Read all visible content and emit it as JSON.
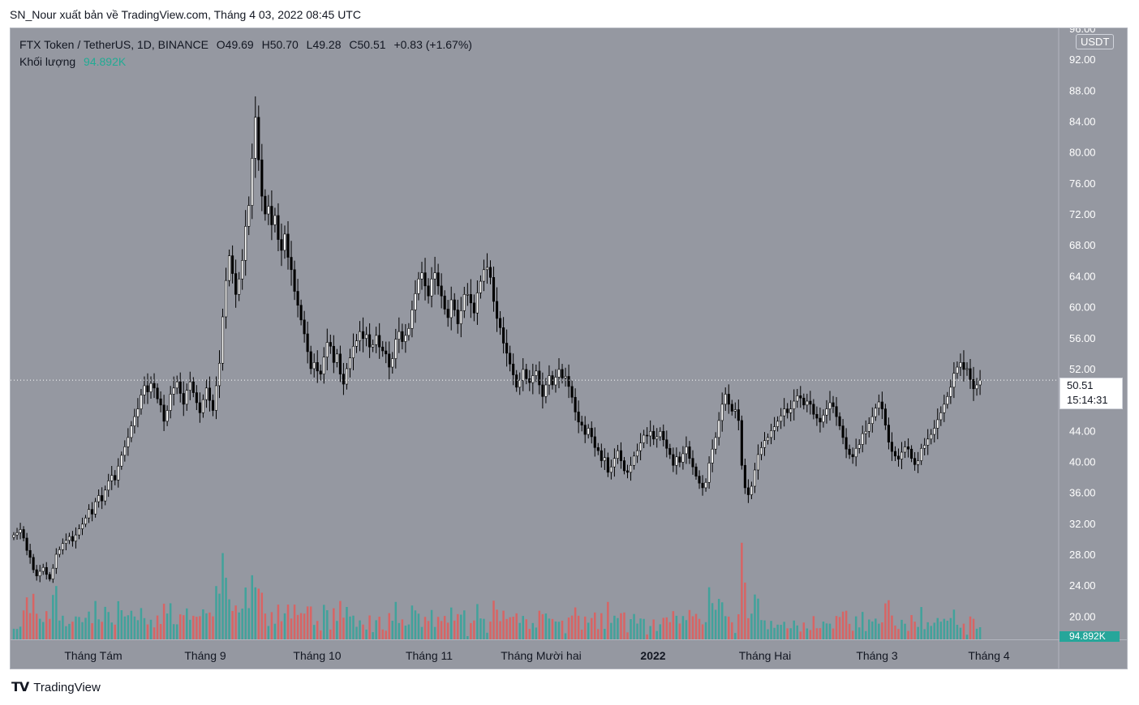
{
  "header": {
    "publish_line": "SN_Nour xuất bản về TradingView.com, Tháng 4 03, 2022 08:45 UTC"
  },
  "legend": {
    "symbol": "FTX Token / TetherUS, 1D, BINANCE",
    "open": "O49.69",
    "high": "H50.70",
    "low": "L49.28",
    "close": "C50.51",
    "change": "+0.83 (+1.67%)",
    "volume_label": "Khối lượng",
    "volume_value": "94.892K"
  },
  "price_scale": {
    "unit": "USDT",
    "ticks": [
      "92.00",
      "88.00",
      "84.00",
      "80.00",
      "76.00",
      "72.00",
      "68.00",
      "64.00",
      "60.00",
      "56.00",
      "52.00",
      "48.00",
      "44.00",
      "40.00",
      "36.00",
      "32.00",
      "28.00",
      "24.00",
      "20.00"
    ],
    "top_partial": "96.00",
    "last_price": "50.51",
    "countdown": "15:14:31",
    "volume_tag": "94.892K"
  },
  "time_scale": {
    "labels": [
      "Tháng Tám",
      "Tháng 9",
      "Tháng 10",
      "Tháng 11",
      "Tháng Mười hai",
      "2022",
      "Tháng Hai",
      "Tháng 3",
      "Tháng 4"
    ]
  },
  "footer": {
    "brand": "TradingView",
    "logo_text": "𝗧𝗩"
  },
  "colors": {
    "background": "#9598a1",
    "up": "#ffffff",
    "down": "#000000",
    "vol_up": "#26a69a",
    "vol_down": "#ef5350",
    "vol_tag": "#26a69a"
  },
  "chart_data": {
    "type": "candlestick",
    "symbol": "FTX Token / TetherUS",
    "interval": "1D",
    "exchange": "BINANCE",
    "y_axis_range": [
      17,
      96
    ],
    "last_price": 50.51,
    "x_labels": [
      "Tháng Tám",
      "Tháng 9",
      "Tháng 10",
      "Tháng 11",
      "Tháng Mười hai",
      "2022",
      "Tháng Hai",
      "Tháng 3",
      "Tháng 4"
    ],
    "close_series": [
      30.5,
      30.8,
      31.2,
      30.1,
      28.5,
      27.6,
      26.0,
      25.2,
      25.8,
      26.3,
      25.4,
      24.8,
      26.2,
      28.0,
      28.6,
      29.4,
      29.8,
      30.3,
      29.7,
      30.5,
      31.3,
      31.9,
      32.7,
      33.8,
      33.2,
      34.8,
      35.6,
      34.9,
      36.3,
      37.5,
      38.2,
      37.6,
      39.4,
      40.8,
      41.9,
      43.1,
      44.6,
      45.8,
      46.8,
      48.6,
      49.8,
      49.0,
      50.1,
      49.5,
      48.1,
      47.3,
      45.2,
      46.6,
      48.7,
      49.5,
      50.3,
      48.8,
      47.4,
      49.2,
      50.3,
      48.9,
      47.6,
      46.3,
      48.0,
      49.5,
      47.9,
      46.6,
      49.8,
      52.7,
      58.7,
      63.4,
      66.6,
      64.3,
      61.6,
      63.6,
      66.0,
      70.4,
      73.1,
      79.2,
      84.5,
      79.0,
      74.3,
      72.0,
      73.0,
      70.6,
      71.8,
      68.7,
      67.3,
      69.4,
      66.4,
      64.8,
      62.0,
      60.2,
      58.3,
      56.5,
      54.2,
      52.0,
      52.8,
      51.7,
      51.3,
      53.5,
      55.4,
      54.9,
      52.8,
      53.9,
      51.3,
      50.0,
      52.0,
      53.4,
      54.9,
      55.6,
      56.8,
      55.9,
      56.4,
      54.8,
      55.1,
      56.3,
      54.8,
      54.3,
      53.9,
      52.2,
      53.3,
      55.8,
      56.8,
      55.5,
      56.3,
      57.2,
      59.6,
      61.7,
      63.6,
      64.4,
      62.7,
      61.4,
      63.6,
      64.4,
      62.7,
      61.4,
      59.7,
      58.6,
      60.9,
      59.6,
      57.8,
      59.5,
      61.6,
      61.6,
      60.5,
      59.2,
      61.8,
      63.3,
      64.8,
      65.1,
      63.8,
      60.7,
      58.5,
      57.3,
      55.3,
      54.0,
      52.6,
      51.2,
      49.6,
      50.5,
      51.9,
      50.7,
      50.2,
      51.1,
      51.7,
      49.9,
      48.4,
      49.9,
      51.1,
      49.9,
      50.9,
      51.9,
      50.8,
      51.0,
      49.7,
      48.3,
      46.4,
      45.1,
      44.7,
      43.5,
      44.3,
      43.2,
      41.8,
      41.4,
      40.1,
      40.5,
      38.6,
      39.3,
      40.4,
      41.4,
      40.1,
      38.8,
      38.6,
      39.5,
      40.7,
      41.4,
      42.4,
      43.4,
      43.3,
      43.9,
      42.9,
      43.2,
      43.9,
      42.8,
      41.7,
      40.9,
      39.5,
      40.6,
      39.9,
      41.0,
      41.9,
      40.4,
      39.3,
      38.1,
      37.2,
      36.6,
      37.3,
      39.8,
      41.6,
      43.1,
      45.3,
      47.4,
      48.7,
      47.4,
      46.5,
      46.7,
      45.3,
      39.5,
      36.6,
      35.7,
      36.8,
      38.9,
      40.9,
      41.8,
      42.7,
      43.1,
      44.0,
      44.5,
      45.2,
      45.9,
      46.8,
      46.3,
      46.8,
      47.8,
      48.5,
      48.2,
      47.3,
      47.8,
      47.4,
      46.1,
      45.6,
      45.1,
      46.0,
      46.8,
      47.6,
      47.1,
      45.8,
      44.6,
      43.1,
      41.6,
      40.9,
      40.6,
      41.7,
      42.2,
      43.6,
      43.9,
      44.9,
      45.8,
      46.9,
      47.7,
      46.8,
      44.7,
      42.5,
      41.3,
      40.7,
      40.3,
      41.2,
      41.9,
      41.6,
      40.4,
      39.6,
      40.1,
      41.7,
      42.1,
      42.9,
      43.5,
      44.3,
      45.4,
      46.3,
      47.4,
      48.4,
      49.6,
      51.4,
      52.2,
      52.8,
      51.9,
      52.0,
      50.6,
      49.4,
      49.9,
      50.51
    ]
  }
}
